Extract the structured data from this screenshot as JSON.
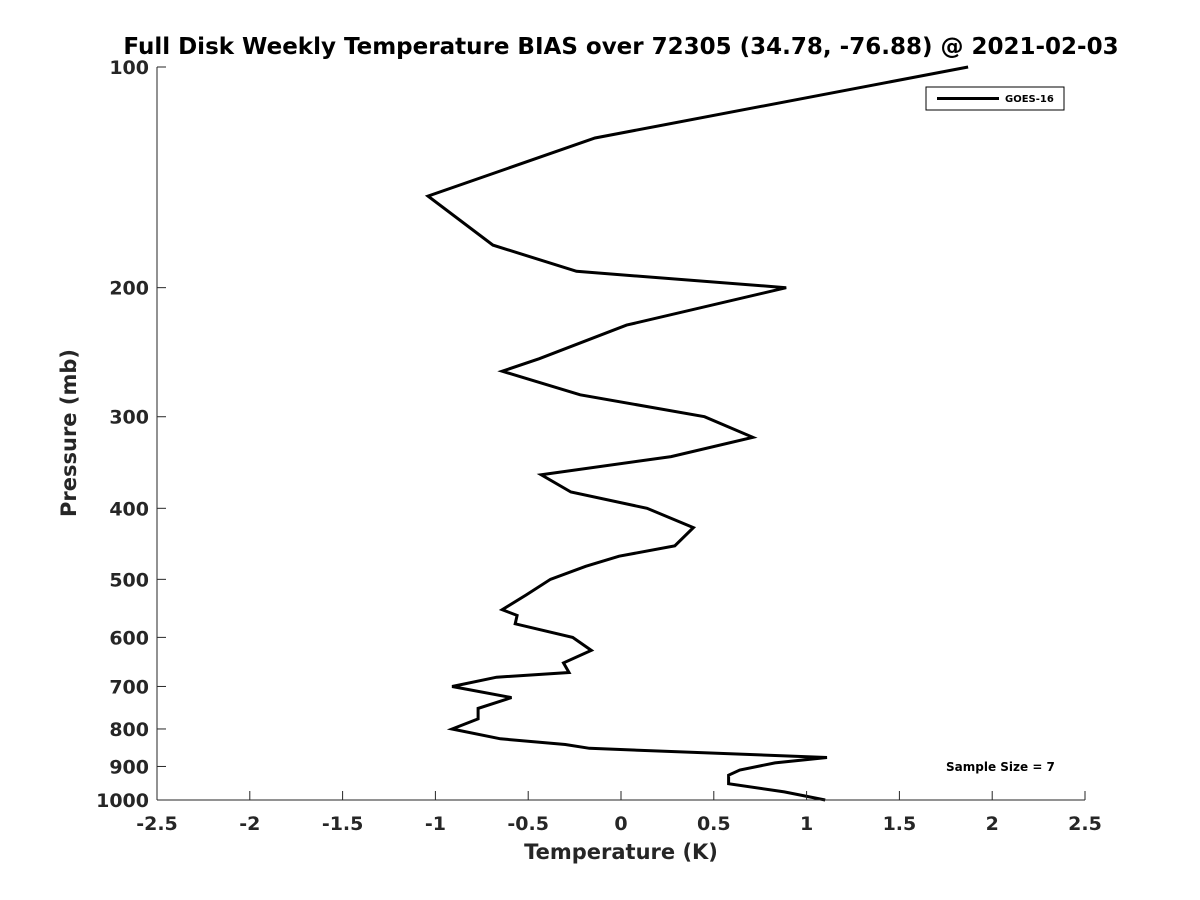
{
  "chart_data": {
    "type": "line",
    "title": "Full Disk Weekly Temperature BIAS over 72305 (34.78, -76.88) @ 2021-02-03",
    "xlabel": "Temperature (K)",
    "ylabel": "Pressure (mb)",
    "xlim": [
      -2.5,
      2.5
    ],
    "ylim": [
      1000,
      100
    ],
    "y_scale": "log",
    "y_inverted": true,
    "grid": false,
    "legend_position": "top-right",
    "x_ticks": [
      -2.5,
      -2,
      -1.5,
      -1,
      -0.5,
      0,
      0.5,
      1,
      1.5,
      2,
      2.5
    ],
    "x_tick_labels": [
      "-2.5",
      "-2",
      "-1.5",
      "-1",
      "-0.5",
      "0",
      "0.5",
      "1",
      "1.5",
      "2",
      "2.5"
    ],
    "y_ticks": [
      100,
      200,
      300,
      400,
      500,
      600,
      700,
      800,
      900,
      1000
    ],
    "y_tick_labels": [
      "100",
      "200",
      "300",
      "400",
      "500",
      "600",
      "700",
      "800",
      "900",
      "1000"
    ],
    "annotation": "Sample Size = 7",
    "series": [
      {
        "name": "GOES-16",
        "color": "#000000",
        "points": [
          [
            1.87,
            100
          ],
          [
            -0.14,
            125
          ],
          [
            -1.04,
            150
          ],
          [
            -0.69,
            175
          ],
          [
            -0.24,
            190
          ],
          [
            0.89,
            200
          ],
          [
            0.03,
            225
          ],
          [
            -0.44,
            250
          ],
          [
            -0.64,
            260
          ],
          [
            -0.22,
            280
          ],
          [
            0.45,
            300
          ],
          [
            0.71,
            320
          ],
          [
            0.27,
            340
          ],
          [
            -0.43,
            360
          ],
          [
            -0.27,
            380
          ],
          [
            0.14,
            400
          ],
          [
            0.39,
            425
          ],
          [
            0.29,
            450
          ],
          [
            -0.01,
            465
          ],
          [
            -0.19,
            480
          ],
          [
            -0.38,
            500
          ],
          [
            -0.51,
            525
          ],
          [
            -0.64,
            550
          ],
          [
            -0.56,
            560
          ],
          [
            -0.57,
            575
          ],
          [
            -0.26,
            600
          ],
          [
            -0.16,
            625
          ],
          [
            -0.31,
            650
          ],
          [
            -0.28,
            670
          ],
          [
            -0.67,
            680
          ],
          [
            -0.91,
            700
          ],
          [
            -0.59,
            725
          ],
          [
            -0.77,
            750
          ],
          [
            -0.77,
            775
          ],
          [
            -0.91,
            800
          ],
          [
            -0.65,
            825
          ],
          [
            -0.3,
            840
          ],
          [
            -0.17,
            850
          ],
          [
            1.11,
            875
          ],
          [
            0.83,
            890
          ],
          [
            0.64,
            910
          ],
          [
            0.58,
            925
          ],
          [
            0.58,
            950
          ],
          [
            0.88,
            975
          ],
          [
            1.1,
            1000
          ]
        ]
      }
    ]
  }
}
